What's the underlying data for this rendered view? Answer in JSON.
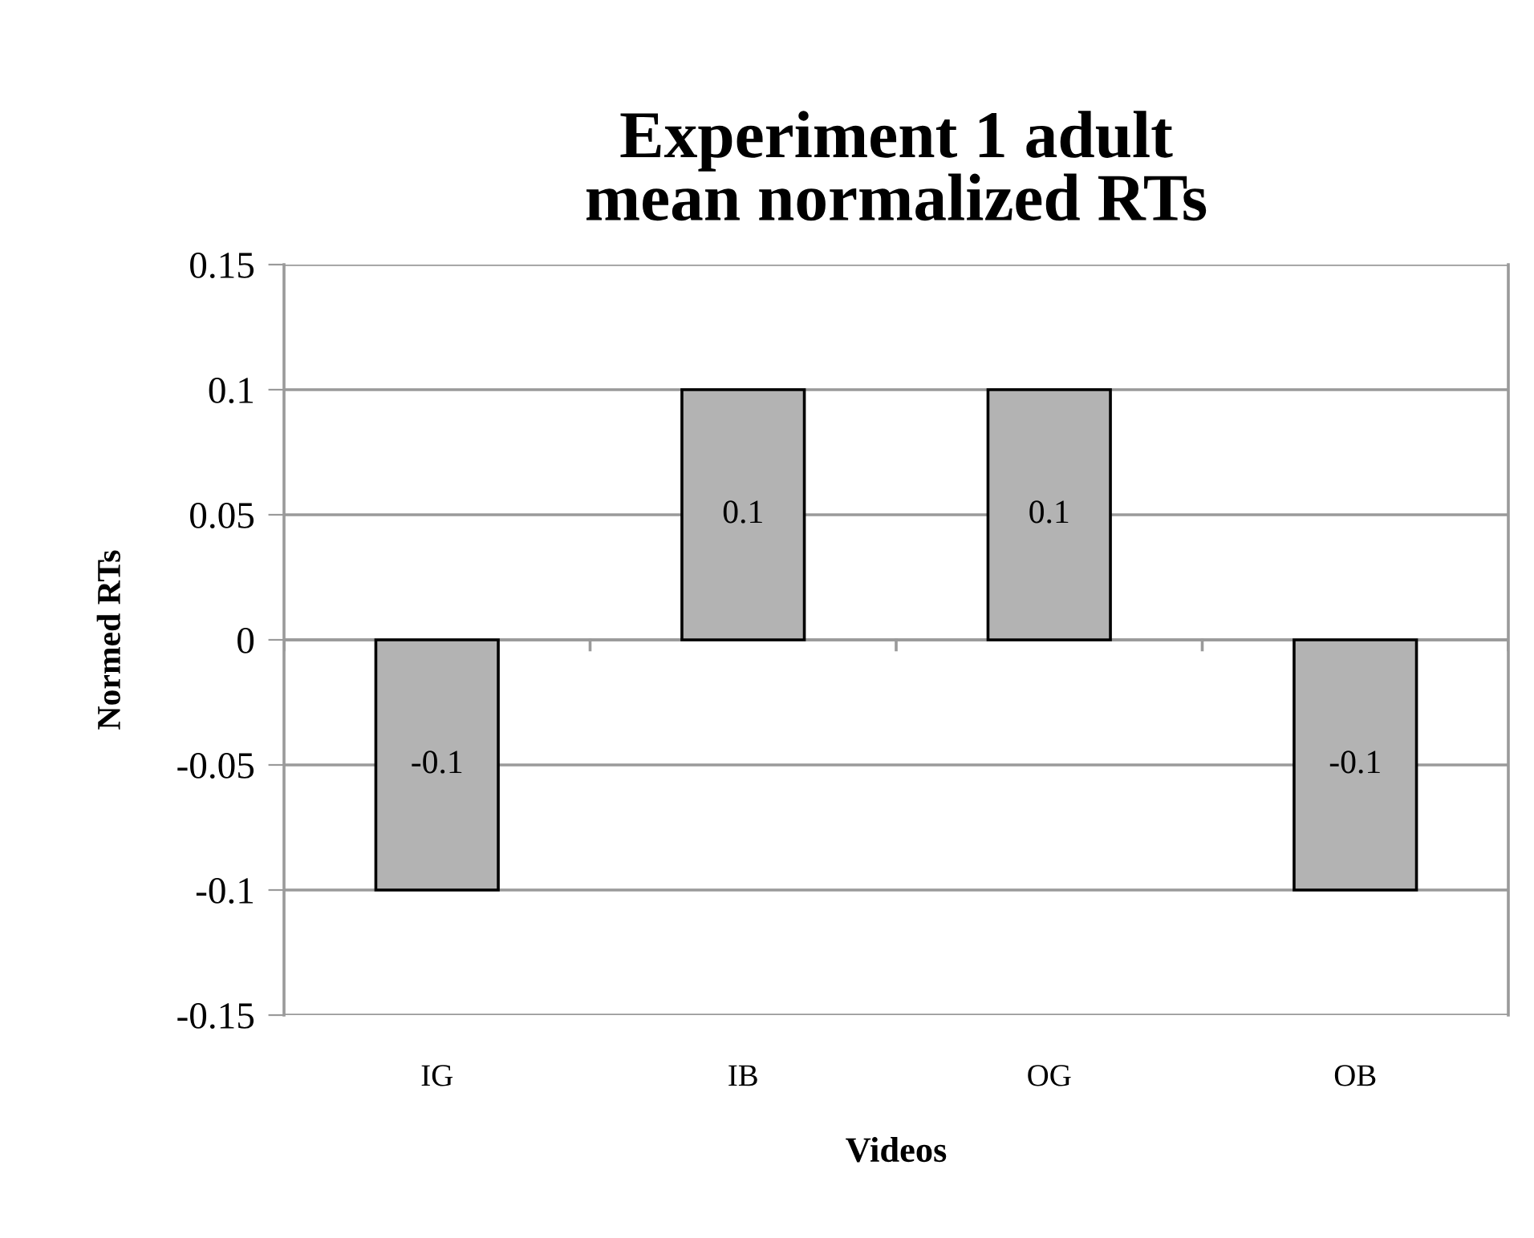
{
  "chart_data": {
    "type": "bar",
    "title": "Experiment 1 adult\nmean normalized RTs",
    "xlabel": "Videos",
    "ylabel": "Normed RTs",
    "categories": [
      "IG",
      "IB",
      "OG",
      "OB"
    ],
    "values": [
      -0.1,
      0.1,
      0.1,
      -0.1
    ],
    "color": "#b3b3b3",
    "ylim": [
      -0.15,
      0.15
    ],
    "yticks": [
      -0.15,
      -0.1,
      -0.05,
      0,
      0.05,
      0.1,
      0.15
    ],
    "grid": "y",
    "data_labels": true,
    "legend": false
  }
}
